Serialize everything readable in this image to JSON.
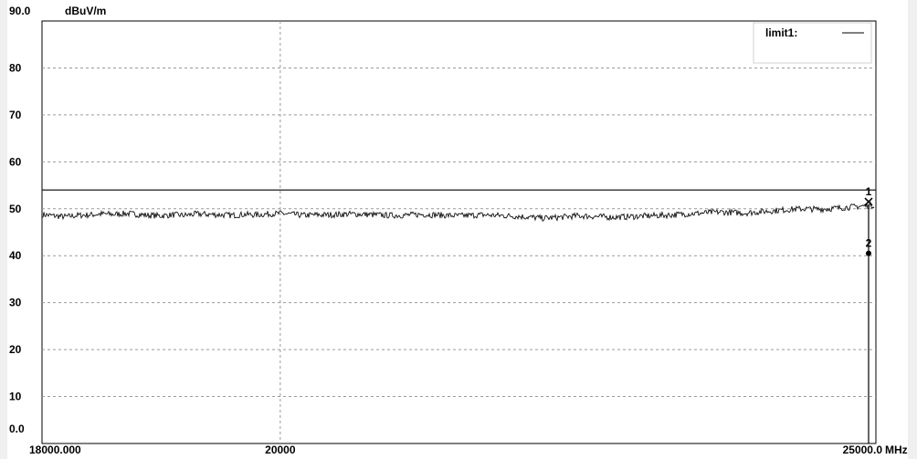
{
  "chart_data": {
    "type": "line",
    "ylabel": "dBuV/m",
    "xunit": "MHz",
    "xlim": [
      18000,
      25000
    ],
    "ylim": [
      0,
      90
    ],
    "y_ticks": [
      "90.0",
      "80",
      "70",
      "60",
      "50",
      "40",
      "30",
      "20",
      "10",
      "0.0"
    ],
    "x_ticks": [
      "18000.000",
      "20000",
      "25000.0"
    ],
    "x_tick_values": [
      18000,
      20000,
      25000
    ],
    "grid": true,
    "legend": {
      "position": "top-right",
      "entries": [
        {
          "label": "limit1:"
        }
      ]
    },
    "limit": {
      "name": "limit1",
      "value": 54
    },
    "series": [
      {
        "x": [
          18000,
          18100,
          18200,
          18300,
          18400,
          18500,
          18600,
          18700,
          18800,
          18900,
          19000,
          19100,
          19200,
          19300,
          19400,
          19500,
          19600,
          19700,
          19800,
          19900,
          20000,
          20100,
          20200,
          20300,
          20400,
          20500,
          20600,
          20700,
          20800,
          20900,
          21000,
          21100,
          21200,
          21300,
          21400,
          21500,
          21600,
          21700,
          21800,
          21900,
          22000,
          22100,
          22200,
          22300,
          22400,
          22500,
          22600,
          22700,
          22800,
          22900,
          23000,
          23100,
          23200,
          23300,
          23400,
          23500,
          23600,
          23700,
          23800,
          23900,
          24000,
          24100,
          24200,
          24300,
          24400,
          24500,
          24600,
          24700,
          24800,
          24900,
          25000
        ],
        "values": [
          48.8,
          48.5,
          48.3,
          48.6,
          48.7,
          48.9,
          48.8,
          49.0,
          48.8,
          48.6,
          48.5,
          48.7,
          48.6,
          48.9,
          48.8,
          48.7,
          48.6,
          48.8,
          48.7,
          48.9,
          49.0,
          48.8,
          48.6,
          48.7,
          48.7,
          48.8,
          48.9,
          48.8,
          48.7,
          48.6,
          48.6,
          48.7,
          48.8,
          48.7,
          48.6,
          48.5,
          48.6,
          48.7,
          48.6,
          48.5,
          48.4,
          48.2,
          48.0,
          48.1,
          48.3,
          48.5,
          48.4,
          48.3,
          48.2,
          48.3,
          48.4,
          48.5,
          48.6,
          48.7,
          48.9,
          49.0,
          49.2,
          49.3,
          49.2,
          49.1,
          49.3,
          49.5,
          49.7,
          49.9,
          50.0,
          49.9,
          50.0,
          50.2,
          50.4,
          50.6,
          50.8
        ]
      }
    ],
    "markers": [
      {
        "label": "1",
        "x": 25000,
        "y": 51.5,
        "symbol": "x"
      },
      {
        "label": "2",
        "x": 25000,
        "y": 40.5,
        "symbol": "dot"
      }
    ]
  }
}
